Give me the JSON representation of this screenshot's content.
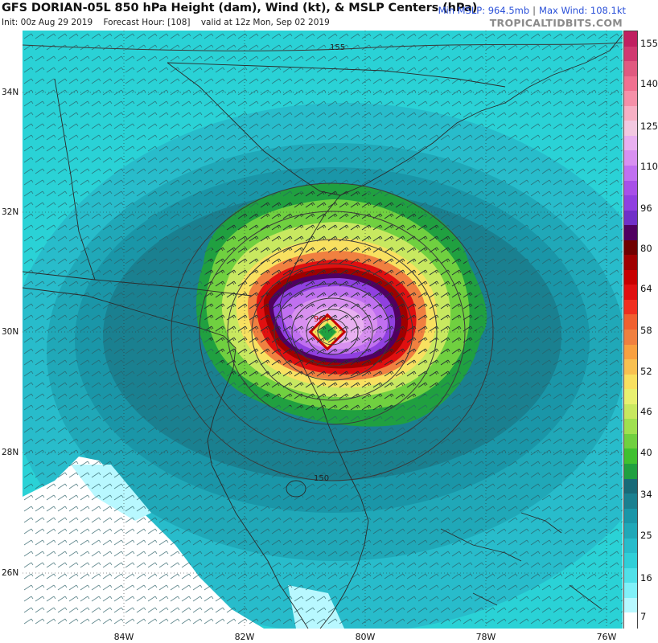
{
  "header": {
    "title": "GFS DORIAN-05L 850 hPa Height (dam), Wind (kt), & MSLP Centers (hPa)",
    "init": "Init: 00z Aug 29 2019",
    "forecast_hour": "Forecast Hour: [108]",
    "valid": "valid at 12z Mon, Sep 02 2019",
    "min_mslp": "Min MSLP: 964.5mb",
    "max_wind": "Max Wind: 108.1kt",
    "brand": "TROPICALTIDBITS.COM"
  },
  "map": {
    "lat_labels": [
      "34N",
      "32N",
      "30N",
      "28N",
      "26N"
    ],
    "lon_labels": [
      "84W",
      "82W",
      "80W",
      "78W",
      "76W"
    ],
    "contour_labels": [
      "155",
      "150"
    ],
    "center_pressure": "964",
    "colors": {
      "background_wind": "#2ad2d6",
      "ocean_dark": "#1a8fa0",
      "land_low_wind": "#ffffff"
    }
  },
  "colorbar": {
    "labels": [
      "155",
      "140",
      "125",
      "110",
      "96",
      "80",
      "64",
      "58",
      "52",
      "46",
      "40",
      "34",
      "25",
      "16",
      "7"
    ],
    "colors": [
      "#c02060",
      "#d03a70",
      "#e05a80",
      "#f07090",
      "#f590a8",
      "#f7b0c4",
      "#f2c8e0",
      "#e8b0f0",
      "#d890f0",
      "#c070f0",
      "#a850e8",
      "#9040e0",
      "#7030c8",
      "#500060",
      "#700000",
      "#a00000",
      "#c80000",
      "#e01010",
      "#f03020",
      "#f06030",
      "#f08040",
      "#f8a040",
      "#f8c050",
      "#f8e060",
      "#e8f070",
      "#c8e860",
      "#a0e050",
      "#70d040",
      "#40c030",
      "#20a040",
      "#186a78",
      "#1a8090",
      "#1a96a8",
      "#20a8b8",
      "#28bccb",
      "#30cfd8",
      "#50e0e8",
      "#80f0f8",
      "#b8f8ff",
      "#ffffff"
    ]
  }
}
